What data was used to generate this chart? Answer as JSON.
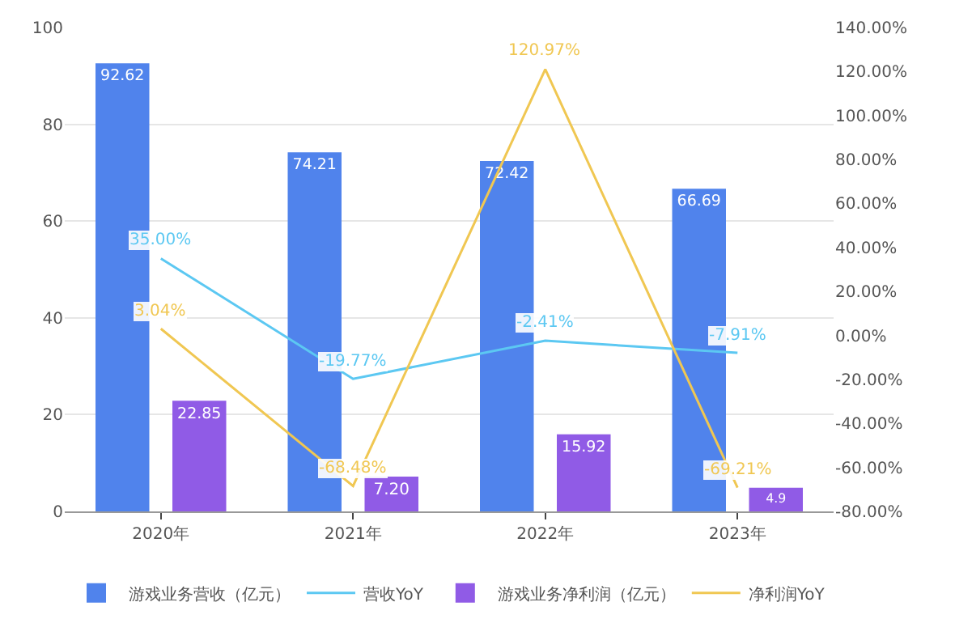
{
  "chart_data": {
    "type": "bar",
    "categories": [
      "2020年",
      "2021年",
      "2022年",
      "2023年"
    ],
    "series": [
      {
        "name": "游戏业务营收（亿元）",
        "color": "#5083ec",
        "values": [
          92.62,
          74.21,
          72.42,
          66.69
        ],
        "value_labels": [
          "92.62",
          "74.21",
          "72.42",
          "66.69"
        ]
      },
      {
        "name": "营收YoY",
        "type": "line",
        "axis": "y2",
        "color": "#5cc8f2",
        "values": [
          35.0,
          -19.77,
          -2.41,
          -7.91
        ],
        "value_labels": [
          "35.00%",
          "-19.77%",
          "-2.41%",
          "-7.91%"
        ]
      },
      {
        "name": "游戏业务净利润（亿元）",
        "color": "#905be6",
        "values": [
          22.85,
          7.2,
          15.92,
          4.9
        ],
        "value_labels": [
          "22.85",
          "7.20",
          "15.92",
          "4.9"
        ]
      },
      {
        "name": "净利润YoY",
        "type": "line",
        "axis": "y2",
        "color": "#f0c752",
        "values": [
          3.04,
          -68.48,
          120.97,
          -69.21
        ],
        "value_labels": [
          "3.04%",
          "-68.48%",
          "120.97%",
          "-69.21%"
        ]
      }
    ],
    "ylim": [
      0,
      100
    ],
    "yticks": [
      0,
      20,
      40,
      60,
      80,
      100
    ],
    "y2lim": [
      -80,
      140
    ],
    "y2ticks": [
      {
        "value": -80,
        "label": "-80.00%"
      },
      {
        "value": -60,
        "label": "-60.00%"
      },
      {
        "value": -40,
        "label": "-40.00%"
      },
      {
        "value": -20,
        "label": "-20.00%"
      },
      {
        "value": 0,
        "label": "0.00%"
      },
      {
        "value": 20,
        "label": "20.00%"
      },
      {
        "value": 40,
        "label": "40.00%"
      },
      {
        "value": 60,
        "label": "60.00%"
      },
      {
        "value": 80,
        "label": "80.00%"
      },
      {
        "value": 100,
        "label": "100.00%"
      },
      {
        "value": 120,
        "label": "120.00%"
      },
      {
        "value": 140,
        "label": "140.00%"
      }
    ],
    "grid": "y",
    "legend": "bottom",
    "marker": "none",
    "line_style": "solid"
  }
}
